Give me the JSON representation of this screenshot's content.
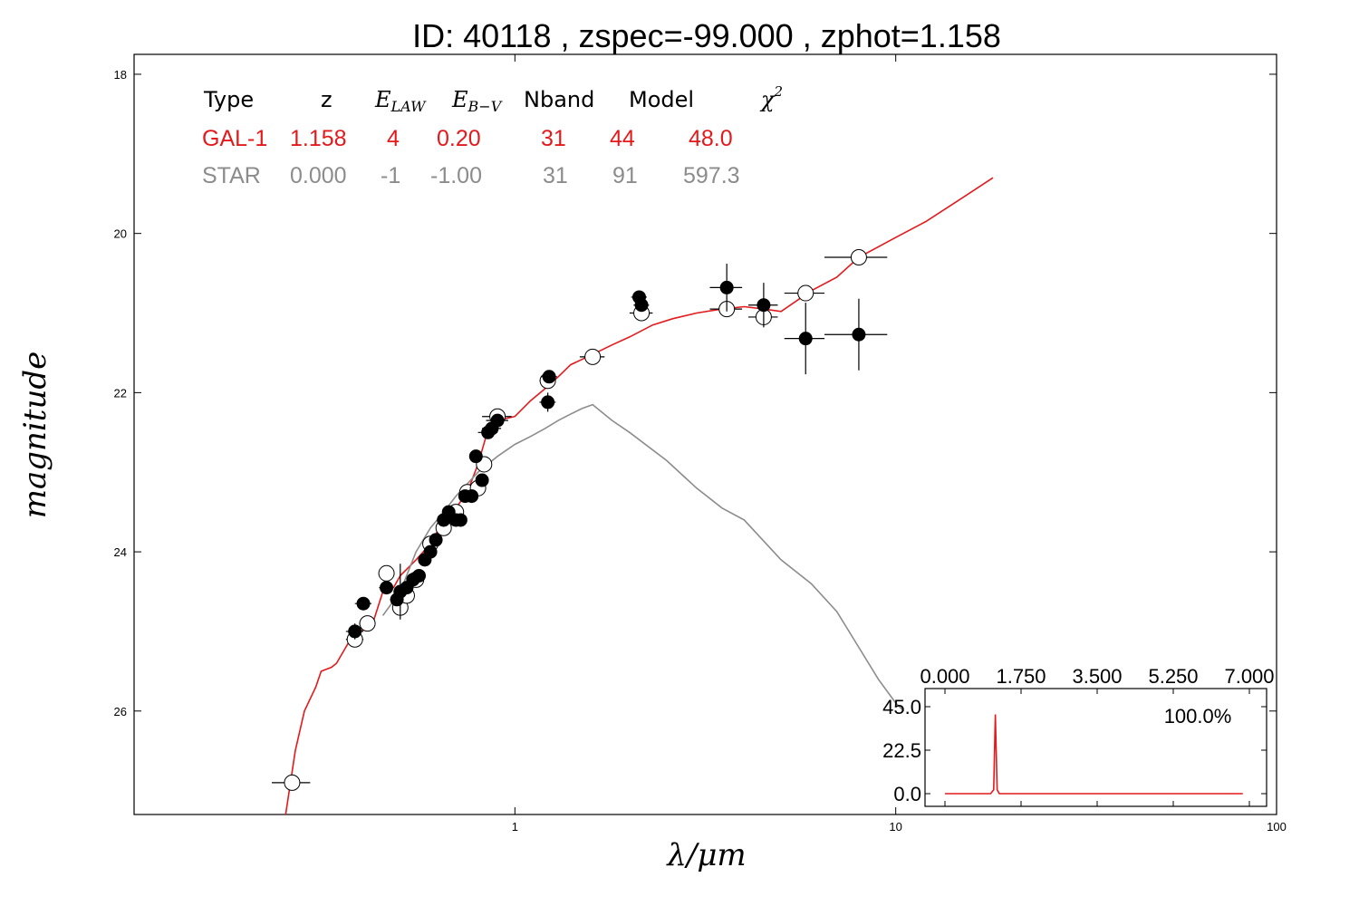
{
  "chart_data": {
    "type": "line",
    "title": "ID:  40118 , zspec=-99.000 , zphot=1.158",
    "xlabel": "λ/μm",
    "ylabel": "magnitude",
    "xscale": "log",
    "xlim": [
      0.1,
      100
    ],
    "ylim": [
      27.3,
      17.75
    ],
    "y_inverted": true,
    "x_ticks": [
      {
        "v": 1,
        "label": "1"
      },
      {
        "v": 10,
        "label": "10"
      },
      {
        "v": 100,
        "label": "100"
      }
    ],
    "y_ticks": [
      {
        "v": 18,
        "label": "18"
      },
      {
        "v": 20,
        "label": "20"
      },
      {
        "v": 22,
        "label": "22"
      },
      {
        "v": 24,
        "label": "24"
      },
      {
        "v": 26,
        "label": "26"
      }
    ],
    "grid": false,
    "fit_table": {
      "columns": [
        "Type",
        "z",
        "E_LAW",
        "E_B-V",
        "Nband",
        "Model",
        "χ2"
      ],
      "rows": [
        {
          "cells": [
            "GAL-1",
            "1.158",
            "4",
            "0.20",
            "31",
            "44",
            "48.0"
          ],
          "color": "#e31a1c"
        },
        {
          "cells": [
            "STAR",
            "0.000",
            "-1",
            "-1.00",
            "31",
            "91",
            "597.3"
          ],
          "color": "#8c8c8c"
        }
      ]
    },
    "series": [
      {
        "style": "line",
        "color": "#e31a1c",
        "x": [
          0.25,
          0.265,
          0.28,
          0.3,
          0.31,
          0.33,
          0.34,
          0.37,
          0.39,
          0.42,
          0.45,
          0.48,
          0.5,
          0.55,
          0.6,
          0.65,
          0.7,
          0.75,
          0.8,
          0.84,
          0.9,
          1.0,
          1.1,
          1.2,
          1.3,
          1.4,
          1.6,
          1.8,
          2.0,
          2.3,
          2.6,
          3.0,
          3.5,
          4.0,
          4.5,
          5.0,
          6.0,
          7.0,
          8.0,
          10.0,
          12.0,
          15.0,
          18.0
        ],
        "y": [
          27.3,
          26.5,
          26.0,
          25.7,
          25.5,
          25.45,
          25.4,
          25.1,
          25.0,
          24.95,
          24.5,
          24.45,
          24.3,
          24.1,
          23.9,
          23.6,
          23.45,
          23.25,
          22.9,
          22.55,
          22.35,
          22.3,
          22.1,
          21.95,
          21.8,
          21.65,
          21.52,
          21.4,
          21.3,
          21.15,
          21.07,
          21.0,
          20.95,
          20.92,
          20.95,
          20.98,
          20.72,
          20.55,
          20.3,
          20.05,
          19.85,
          19.55,
          19.3
        ]
      },
      {
        "style": "line",
        "color": "#8c8c8c",
        "x": [
          0.45,
          0.5,
          0.55,
          0.6,
          0.65,
          0.7,
          0.8,
          0.9,
          1.0,
          1.1,
          1.2,
          1.3,
          1.4,
          1.5,
          1.6,
          1.8,
          2.0,
          2.5,
          3.0,
          3.5,
          4.0,
          5.0,
          6.0,
          7.0,
          8.0,
          9.0,
          10.0,
          10.5
        ],
        "y": [
          24.8,
          24.5,
          24.0,
          23.7,
          23.5,
          23.3,
          23.0,
          22.8,
          22.65,
          22.55,
          22.45,
          22.35,
          22.27,
          22.2,
          22.15,
          22.35,
          22.5,
          22.85,
          23.2,
          23.45,
          23.6,
          24.1,
          24.4,
          24.75,
          25.2,
          25.6,
          25.9,
          26.0
        ]
      },
      {
        "style": "markers-open",
        "color": "#000000",
        "x": [
          0.26,
          0.38,
          0.41,
          0.46,
          0.5,
          0.52,
          0.55,
          0.6,
          0.65,
          0.7,
          0.75,
          0.8,
          0.83,
          0.9,
          1.22,
          1.6,
          2.15,
          3.6,
          4.5,
          5.8,
          8.0
        ],
        "y": [
          26.9,
          25.1,
          24.9,
          24.27,
          24.7,
          24.55,
          24.35,
          23.9,
          23.7,
          23.5,
          23.25,
          23.2,
          22.9,
          22.3,
          21.85,
          21.55,
          21.0,
          20.95,
          21.05,
          20.75,
          20.3
        ],
        "xerr": [
          0.03,
          0.02,
          0.02,
          0.02,
          0.02,
          0.02,
          0.02,
          0.02,
          0.02,
          0.02,
          0.02,
          0.03,
          0.03,
          0.08,
          0.06,
          0.12,
          0.15,
          0.35,
          0.4,
          0.7,
          1.5
        ]
      },
      {
        "style": "markers-filled",
        "color": "#000000",
        "x": [
          0.38,
          0.4,
          0.46,
          0.49,
          0.5,
          0.52,
          0.54,
          0.56,
          0.58,
          0.6,
          0.62,
          0.65,
          0.67,
          0.7,
          0.72,
          0.74,
          0.77,
          0.79,
          0.82,
          0.85,
          0.87,
          0.9,
          1.22,
          1.23,
          2.12,
          2.15,
          3.6,
          4.5,
          5.8,
          8.0
        ],
        "y": [
          25.0,
          24.65,
          24.45,
          24.6,
          24.5,
          24.45,
          24.35,
          24.3,
          24.1,
          24.0,
          23.85,
          23.6,
          23.5,
          23.6,
          23.6,
          23.3,
          23.3,
          22.8,
          23.1,
          22.5,
          22.45,
          22.35,
          22.12,
          21.8,
          20.8,
          20.9,
          20.68,
          20.9,
          21.32,
          21.27
        ],
        "xerr": [
          0.02,
          0.02,
          0.02,
          0.02,
          0.02,
          0.02,
          0.02,
          0.02,
          0.02,
          0.02,
          0.02,
          0.02,
          0.02,
          0.02,
          0.02,
          0.02,
          0.02,
          0.02,
          0.02,
          0.05,
          0.05,
          0.06,
          0.06,
          0.06,
          0.1,
          0.1,
          0.35,
          0.4,
          0.7,
          1.5
        ],
        "yerr": [
          0.1,
          0.05,
          0.05,
          0.05,
          0.35,
          0.05,
          0.05,
          0.05,
          0.05,
          0.05,
          0.05,
          0.05,
          0.05,
          0.05,
          0.05,
          0.05,
          0.05,
          0.05,
          0.05,
          0.05,
          0.05,
          0.05,
          0.12,
          0.08,
          0.05,
          0.05,
          0.3,
          0.28,
          0.45,
          0.45
        ]
      }
    ],
    "inset": {
      "type": "line",
      "color": "#e31a1c",
      "xlim": [
        0,
        7
      ],
      "ylim": [
        0,
        45
      ],
      "x_ticks": [
        "0.000",
        "1.750",
        "3.500",
        "5.250",
        "7.000"
      ],
      "y_ticks": [
        "0.0",
        "22.5",
        "45.0"
      ],
      "annotation": "100.0%",
      "x": [
        0,
        1.05,
        1.12,
        1.158,
        1.2,
        1.25,
        6.85
      ],
      "y": [
        0,
        0,
        2,
        41,
        2,
        0,
        0
      ]
    }
  }
}
